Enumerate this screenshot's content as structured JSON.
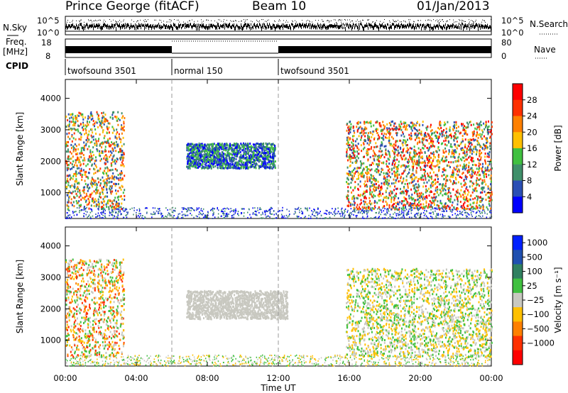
{
  "header": {
    "station": "Prince George (fitACF)",
    "beam": "Beam 10",
    "date": "01/Jan/2013"
  },
  "labels": {
    "nsky": "N.Sky",
    "nsearch": "N.Search",
    "freq": "Freq.",
    "freq_unit": "[MHz]",
    "nave": "Nave",
    "cpid": "CPID",
    "nsky_ticks": [
      "10^5",
      "10^0"
    ],
    "nsearch_ticks": [
      "10^5",
      "10^0"
    ],
    "freq_ticks": [
      "18",
      "8"
    ],
    "nave_ticks": [
      "80",
      "0"
    ]
  },
  "cpid_segments": [
    {
      "start": 0,
      "end": 6,
      "name": "twofsound 3501"
    },
    {
      "start": 6,
      "end": 12,
      "name": "normal 150"
    },
    {
      "start": 12,
      "end": 24,
      "name": "twofsound 3501"
    }
  ],
  "chart_data": [
    {
      "type": "heatmap",
      "name": "power",
      "ylabel": "Slant Range [km]",
      "ylim": [
        180,
        4600
      ],
      "yticks": [
        1000,
        2000,
        3000,
        4000
      ],
      "colorbar_label": "Power [dB]",
      "colorbar_ticks": [
        "4",
        "8",
        "12",
        "16",
        "20",
        "24",
        "28"
      ],
      "colors": [
        "#0000ff",
        "#2b4fb5",
        "#3f8f6a",
        "#40c040",
        "#ffc000",
        "#ff8000",
        "#ff3000",
        "#ff0000"
      ],
      "regions": [
        {
          "t": [
            0,
            3.3
          ],
          "r": [
            500,
            3600
          ],
          "level": [
            1,
            6
          ]
        },
        {
          "t": [
            6.8,
            11.8
          ],
          "r": [
            1800,
            2600
          ],
          "level": [
            0,
            3
          ]
        },
        {
          "t": [
            15.8,
            24
          ],
          "r": [
            500,
            3300
          ],
          "level": [
            1,
            7
          ]
        }
      ]
    },
    {
      "type": "heatmap",
      "name": "velocity",
      "ylabel": "Slant Range [km]",
      "ylim": [
        180,
        4600
      ],
      "yticks": [
        1000,
        2000,
        3000,
        4000
      ],
      "colorbar_label": "Velocity [m s⁻¹]",
      "colorbar_ticks": [
        "1000",
        "500",
        "100",
        "25",
        "−25",
        "−100",
        "−500",
        "−1000"
      ],
      "colors": [
        "#0020ff",
        "#2050b0",
        "#308060",
        "#40c040",
        "#c8c8c0",
        "#ffc000",
        "#ff8000",
        "#ff3000",
        "#ff0000"
      ],
      "regions": [
        {
          "t": [
            0,
            3.3
          ],
          "r": [
            500,
            3600
          ],
          "level": [
            3,
            7
          ]
        },
        {
          "t": [
            6.8,
            12.5
          ],
          "r": [
            1700,
            2600
          ],
          "level": [
            4,
            4
          ]
        },
        {
          "t": [
            15.8,
            24
          ],
          "r": [
            500,
            3300
          ],
          "level": [
            3,
            5
          ]
        }
      ]
    }
  ],
  "time_axis": {
    "xlabel": "Time UT",
    "xlim": [
      0,
      24
    ],
    "ticks": [
      0,
      4,
      8,
      12,
      16,
      20,
      24
    ],
    "tick_labels": [
      "00:00",
      "04:00",
      "08:00",
      "12:00",
      "16:00",
      "20:00",
      "00:00"
    ]
  }
}
